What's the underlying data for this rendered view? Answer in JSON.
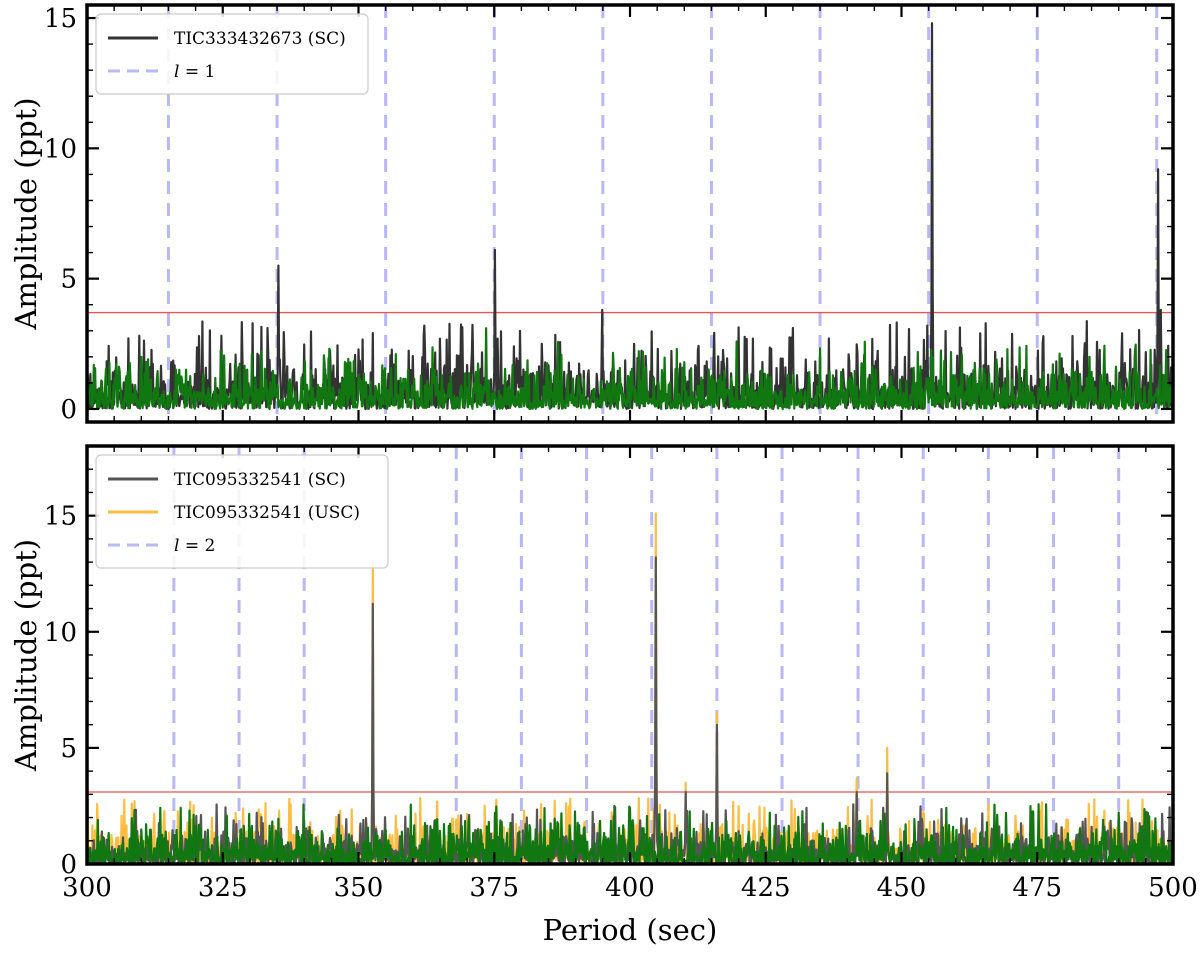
{
  "chart_data": [
    {
      "type": "line",
      "ylabel": "Amplitude (ppt)",
      "xlabel": "",
      "xlim": [
        300,
        500
      ],
      "ylim": [
        -0.5,
        15.5
      ],
      "xticks": [
        325,
        350,
        375,
        400,
        425,
        450,
        475
      ],
      "yticks": [
        0,
        5,
        10,
        15
      ],
      "ytick_labels": [
        "0",
        "5",
        "10",
        "15"
      ],
      "threshold": 3.7,
      "threshold_color": "#e8544f",
      "mode_lines": [
        315,
        335,
        355,
        375,
        395,
        415,
        435,
        455,
        475,
        497
      ],
      "mode_line_color": "#b8b8f8",
      "legend_position": "top-left",
      "legend": [
        {
          "label": "TIC333432673 (SC)",
          "style": "solid",
          "color": "#333333"
        },
        {
          "label": "l = 1",
          "label_italic_part": "l",
          "label_rest": " = 1",
          "style": "dashed",
          "color": "#b8b8f8"
        }
      ],
      "series": [
        {
          "name": "TIC333432673 (SC)",
          "color": "#333333",
          "noise_level": 1.3,
          "seed": 11,
          "peaks": [
            [
              335.2,
              5.5
            ],
            [
              375.1,
              6.1
            ],
            [
              379.8,
              3.0
            ],
            [
              394.9,
              3.8
            ],
            [
              455.6,
              14.8
            ],
            [
              454.8,
              3.2
            ],
            [
              497.2,
              9.2
            ],
            [
              497.8,
              3.8
            ],
            [
              481.5,
              2.8
            ]
          ]
        },
        {
          "name": "",
          "color": "#117711",
          "noise_level": 1.0,
          "seed": 29,
          "peaks": [
            [
              373.5,
              3.1
            ]
          ]
        }
      ]
    },
    {
      "type": "line",
      "ylabel": "Amplitude (ppt)",
      "xlabel": "Period (sec)",
      "xlim": [
        300,
        500
      ],
      "ylim": [
        0,
        18
      ],
      "xticks": [
        300,
        325,
        350,
        375,
        400,
        425,
        450,
        475,
        500
      ],
      "xtick_labels": [
        "300",
        "325",
        "350",
        "375",
        "400",
        "425",
        "450",
        "475",
        "500"
      ],
      "yticks": [
        0,
        5,
        10,
        15
      ],
      "ytick_labels": [
        "0",
        "5",
        "10",
        "15"
      ],
      "threshold": 3.1,
      "threshold_color": "#e8544f",
      "mode_lines": [
        316,
        328,
        340,
        368,
        380,
        392,
        404,
        416,
        428,
        442,
        454,
        466,
        478,
        490
      ],
      "mode_line_color": "#b8b8f8",
      "legend_position": "top-left",
      "legend": [
        {
          "label": "TIC095332541 (SC)",
          "style": "solid",
          "color": "#555555"
        },
        {
          "label": "TIC095332541 (USC)",
          "style": "solid",
          "color": "#fbbd42"
        },
        {
          "label": "l = 2",
          "label_italic_part": "l",
          "label_rest": " = 2",
          "style": "dashed",
          "color": "#b8b8f8"
        }
      ],
      "series": [
        {
          "name": "TIC095332541 (USC)",
          "color": "#fbbd42",
          "noise_level": 1.1,
          "seed": 41,
          "peaks": [
            [
              352.6,
              13.0
            ],
            [
              404.8,
              15.1
            ],
            [
              410.2,
              3.5
            ],
            [
              416.0,
              6.5
            ],
            [
              441.8,
              3.7
            ],
            [
              447.4,
              5.0
            ],
            [
              308.3,
              2.6
            ],
            [
              328.8,
              2.4
            ],
            [
              337.3,
              2.8
            ]
          ]
        },
        {
          "name": "TIC095332541 (SC)",
          "color": "#555555",
          "noise_level": 1.0,
          "seed": 53,
          "peaks": [
            [
              352.6,
              11.2
            ],
            [
              404.8,
              13.2
            ],
            [
              410.2,
              3.1
            ],
            [
              416.0,
              6.0
            ],
            [
              441.8,
              3.1
            ],
            [
              447.4,
              3.9
            ]
          ]
        },
        {
          "name": "",
          "color": "#117711",
          "noise_level": 1.0,
          "seed": 67,
          "peaks": []
        }
      ]
    }
  ]
}
